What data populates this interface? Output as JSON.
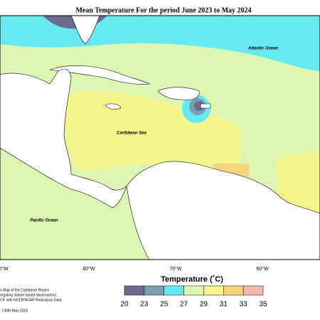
{
  "title": "Mean Temperature For the period June 2023 to May 2024",
  "labels": {
    "atlantic": "Atlantic Ocean",
    "caribbean": "Caribbean Sea",
    "pacific": "Pacific Ocean"
  },
  "longitudes": [
    "0°W",
    "80°W",
    "70°W",
    "60°W"
  ],
  "legend": {
    "title": "Temperature (˚C)",
    "ticks": [
      20,
      23,
      25,
      27,
      29,
      31,
      33,
      35
    ],
    "colors": [
      "#6b6b8f",
      "#7d9db3",
      "#66e9f2",
      "#ddf6b2",
      "#f6f68c",
      "#f6d47c",
      "#f4b9aa"
    ]
  },
  "footnote": [
    "n Map of the Caribbean Region",
    "regating station based observations,",
    "CF, with NCEP/NCAR Reanalysis Data.",
    "CIMH May 2024"
  ]
}
